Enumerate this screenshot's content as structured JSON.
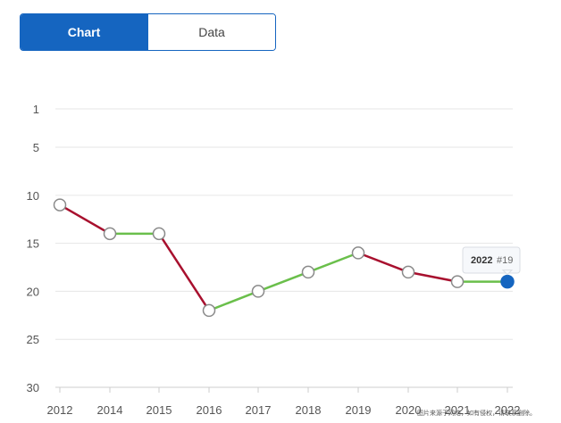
{
  "toggle": {
    "chart_label": "Chart",
    "data_label": "Data",
    "selected": "Chart"
  },
  "colors": {
    "accent": "#1565c0",
    "up": "#6abf4b",
    "down": "#a8102e",
    "grid": "#e6e6e6"
  },
  "tooltip": {
    "year": "2022",
    "rank": "#19"
  },
  "watermark": "图片来源于网络，如有侵权，请联系删除。",
  "chart_data": {
    "type": "line",
    "y_reversed": true,
    "ylim": [
      1,
      30
    ],
    "yticks": [
      1,
      5,
      10,
      15,
      20,
      25,
      30
    ],
    "x": [
      "2012",
      "2014",
      "2015",
      "2016",
      "2017",
      "2018",
      "2019",
      "2020",
      "2021",
      "2022"
    ],
    "values": [
      11,
      14,
      14,
      22,
      20,
      18,
      16,
      18,
      19,
      19
    ],
    "grid": true,
    "highlighted_point": "2022"
  }
}
